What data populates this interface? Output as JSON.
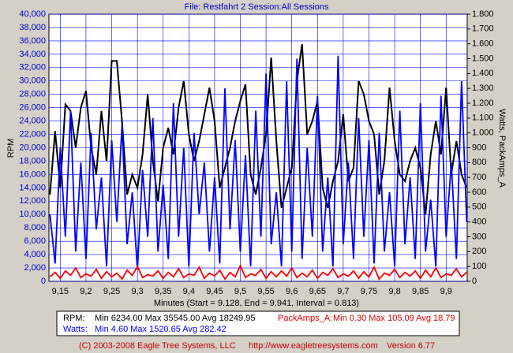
{
  "chart_data": {
    "type": "line",
    "title": "File: Restfahrt 2   Session:All Sessions",
    "xlabel": "Minutes (Start = 9.128, End = 9.941, Interval = 0.813)",
    "ylabel": "RPM",
    "y2label": "Watts, PackAmps_A",
    "xlim": [
      9.128,
      9.941
    ],
    "xticks": [
      {
        "value": 9.15,
        "label": "9,15"
      },
      {
        "value": 9.2,
        "label": "9,2"
      },
      {
        "value": 9.25,
        "label": "9,25"
      },
      {
        "value": 9.3,
        "label": "9,3"
      },
      {
        "value": 9.35,
        "label": "9,35"
      },
      {
        "value": 9.4,
        "label": "9,4"
      },
      {
        "value": 9.45,
        "label": "9,45"
      },
      {
        "value": 9.5,
        "label": "9,5"
      },
      {
        "value": 9.55,
        "label": "9,55"
      },
      {
        "value": 9.6,
        "label": "9,6"
      },
      {
        "value": 9.65,
        "label": "9,65"
      },
      {
        "value": 9.7,
        "label": "9,7"
      },
      {
        "value": 9.75,
        "label": "9,75"
      },
      {
        "value": 9.8,
        "label": "9,8"
      },
      {
        "value": 9.85,
        "label": "9,85"
      },
      {
        "value": 9.9,
        "label": "9,9"
      }
    ],
    "ylim": [
      0,
      40000
    ],
    "yticks": [
      0,
      {
        "value": 2000,
        "label": "2,000"
      },
      {
        "value": 4000,
        "label": "4,000"
      },
      {
        "value": 6000,
        "label": "6,000"
      },
      {
        "value": 8000,
        "label": "8,000"
      },
      {
        "value": 10000,
        "label": "10,000"
      },
      {
        "value": 12000,
        "label": "12,000"
      },
      {
        "value": 14000,
        "label": "14,000"
      },
      {
        "value": 16000,
        "label": "16,000"
      },
      {
        "value": 18000,
        "label": "18,000"
      },
      {
        "value": 20000,
        "label": "20,000"
      },
      {
        "value": 22000,
        "label": "22,000"
      },
      {
        "value": 24000,
        "label": "24,000"
      },
      {
        "value": 26000,
        "label": "26,000"
      },
      {
        "value": 28000,
        "label": "28,000"
      },
      {
        "value": 30000,
        "label": "30,000"
      },
      {
        "value": 32000,
        "label": "32,000"
      },
      {
        "value": 34000,
        "label": "34,000"
      },
      {
        "value": 36000,
        "label": "36,000"
      },
      {
        "value": 38000,
        "label": "38,000"
      },
      {
        "value": 40000,
        "label": "40,000"
      }
    ],
    "y2lim": [
      0,
      1800
    ],
    "y2ticks": [
      0,
      100,
      200,
      300,
      400,
      500,
      600,
      700,
      800,
      900,
      {
        "value": 1000,
        "label": "1.000"
      },
      {
        "value": 1100,
        "label": "1.100"
      },
      {
        "value": 1200,
        "label": "1.200"
      },
      {
        "value": 1300,
        "label": "1.300"
      },
      {
        "value": 1400,
        "label": "1.400"
      },
      {
        "value": 1500,
        "label": "1.500"
      },
      {
        "value": 1600,
        "label": "1.600"
      },
      {
        "value": 1700,
        "label": "1.700"
      },
      {
        "value": 1800,
        "label": "1.800"
      }
    ],
    "grid": true,
    "x": [
      9.13,
      9.14,
      9.15,
      9.16,
      9.17,
      9.18,
      9.19,
      9.2,
      9.21,
      9.22,
      9.23,
      9.24,
      9.25,
      9.26,
      9.27,
      9.28,
      9.29,
      9.3,
      9.31,
      9.32,
      9.33,
      9.34,
      9.35,
      9.36,
      9.37,
      9.38,
      9.39,
      9.4,
      9.41,
      9.42,
      9.43,
      9.44,
      9.45,
      9.46,
      9.47,
      9.48,
      9.49,
      9.5,
      9.51,
      9.52,
      9.53,
      9.54,
      9.55,
      9.56,
      9.57,
      9.58,
      9.59,
      9.6,
      9.61,
      9.62,
      9.63,
      9.64,
      9.65,
      9.66,
      9.67,
      9.68,
      9.69,
      9.7,
      9.71,
      9.72,
      9.73,
      9.74,
      9.75,
      9.76,
      9.77,
      9.78,
      9.79,
      9.8,
      9.81,
      9.82,
      9.83,
      9.84,
      9.85,
      9.86,
      9.87,
      9.88,
      9.89,
      9.9,
      9.91,
      9.92,
      9.93,
      9.94
    ],
    "series": [
      {
        "color": "#000000",
        "values": [
          13000,
          22500,
          14000,
          26500,
          25500,
          20000,
          26000,
          28500,
          20000,
          16000,
          25500,
          18000,
          33000,
          33000,
          24000,
          13000,
          16000,
          14000,
          19000,
          28000,
          18000,
          12000,
          20000,
          23000,
          19000,
          26000,
          30000,
          22000,
          18000,
          21000,
          25000,
          29000,
          24000,
          14000,
          17000,
          20000,
          24000,
          27000,
          29500,
          16000,
          13000,
          17000,
          22000,
          33500,
          21000,
          11000,
          14000,
          17000,
          30000,
          35500,
          22000,
          24000,
          27000,
          14000,
          11000,
          15000,
          18000,
          25000,
          15000,
          17000,
          30000,
          28000,
          24000,
          22000,
          13000,
          18000,
          29000,
          21000,
          16000,
          15000,
          18000,
          20000,
          17000,
          10000,
          19000,
          24000,
          19000,
          29000,
          16000,
          21000,
          16000,
          14000
        ]
      },
      {
        "color": "#0000ff",
        "axis": "y2",
        "values": [
          450,
          120,
          900,
          300,
          1150,
          200,
          800,
          150,
          1000,
          350,
          700,
          100,
          950,
          400,
          1050,
          250,
          600,
          80,
          750,
          300,
          1100,
          200,
          650,
          150,
          1200,
          300,
          900,
          100,
          1000,
          450,
          800,
          200,
          700,
          120,
          1300,
          350,
          950,
          200,
          850,
          100,
          1150,
          300,
          1400,
          250,
          600,
          100,
          1350,
          200,
          1500,
          150,
          900,
          300,
          1250,
          200,
          700,
          100,
          1520,
          250,
          800,
          150,
          1100,
          300,
          950,
          120,
          1000,
          200,
          600,
          100,
          1150,
          250,
          700,
          150,
          1200,
          200,
          550,
          100,
          1250,
          300,
          800,
          150,
          1350,
          400
        ]
      },
      {
        "color": "#ff0000",
        "axis": "y2",
        "values": [
          30,
          60,
          20,
          70,
          40,
          90,
          25,
          50,
          35,
          80,
          20,
          65,
          30,
          55,
          15,
          75,
          40,
          100,
          25,
          45,
          35,
          70,
          20,
          60,
          30,
          85,
          25,
          50,
          40,
          95,
          20,
          55,
          35,
          75,
          15,
          60,
          30,
          105,
          25,
          50,
          40,
          80,
          20,
          65,
          30,
          70,
          35,
          90,
          25,
          55,
          30,
          75,
          20,
          60,
          40,
          85,
          25,
          50,
          35,
          70,
          20,
          65,
          30,
          95,
          15,
          55,
          40,
          80,
          25,
          60,
          35,
          70,
          20,
          75,
          30,
          90,
          25,
          50,
          40,
          85,
          30,
          60
        ]
      }
    ]
  },
  "stats": {
    "rpm": {
      "label": "RPM:",
      "text": "Min 6234.00   Max 35545.00   Avg 18249.95"
    },
    "watts": {
      "label": "Watts:",
      "text": "Min 4.60   Max 1520.65   Avg 282.42"
    },
    "amps": {
      "label": "PackAmps_A:",
      "text": "Min 0.30   Max 105.09   Avg 18.79"
    }
  },
  "footer": {
    "copyright": "(C) 2003-2008 Eagle Tree Systems, LLC",
    "url": "http://www.eagletreesystems.com",
    "version": "Version 6.77"
  }
}
